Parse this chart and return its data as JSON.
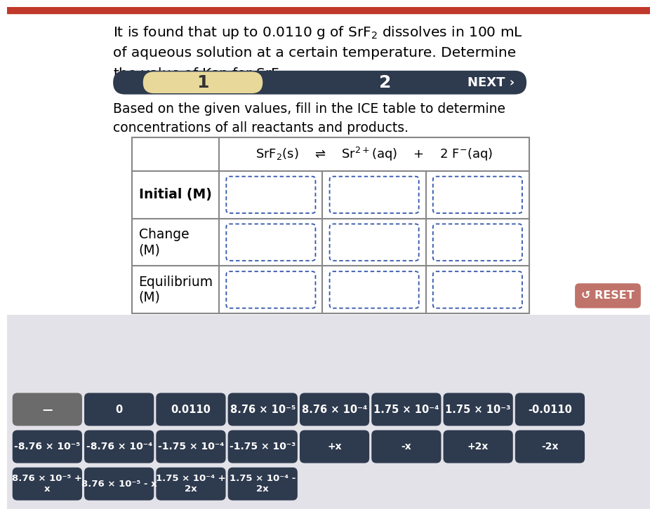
{
  "title_text": "It is found that up to 0.0110 g of SrF$_2$ dissolves in 100 mL\nof aqueous solution at a certain temperature. Determine\nthe value of Ksp for SrF$_2$.",
  "subtitle": "Based on the given values, fill in the ICE table to determine\nconcentrations of all reactants and products.",
  "nav_bg": "#2e3a4e",
  "nav_highlight_color": "#e8d99a",
  "top_bar_color": "#c0392b",
  "row_labels": [
    "Initial (M)",
    "Change\n(M)",
    "Equilibrium\n(M)"
  ],
  "bg_bottom": "#e2e2e8",
  "bg_top": "#ffffff",
  "reset_color": "#c0736a",
  "tile_bg": "#2e3a4e",
  "tile_gray_bg": "#6b6b6b",
  "tile_text_color": "#ffffff",
  "row1_tiles": [
    "—",
    "0",
    "0.0110",
    "8.76 × 10⁻⁵",
    "8.76 × 10⁻⁴",
    "1.75 × 10⁻⁴",
    "1.75 × 10⁻³",
    "-0.0110"
  ],
  "row2_tiles": [
    "-8.76 × 10⁻⁵",
    "-8.76 × 10⁻⁴",
    "-1.75 × 10⁻⁴",
    "-1.75 × 10⁻³",
    "+x",
    "-x",
    "+2x",
    "-2x"
  ],
  "row3_tiles": [
    "8.76 × 10⁻⁵ +\nx",
    "8.76 × 10⁻⁵ - x",
    "1.75 × 10⁻⁴ +\n2x",
    "1.75 × 10⁻⁴ -\n2x"
  ]
}
